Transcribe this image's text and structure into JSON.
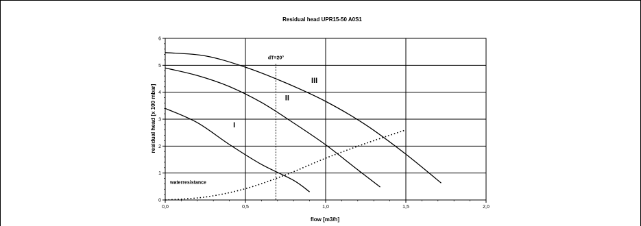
{
  "chart_data": {
    "type": "line",
    "title": "Residual head UPR15-50 A0S1",
    "xlabel": "flow [m3/h]",
    "ylabel": "residual head [x 100 mbar]",
    "xlim": [
      0,
      2
    ],
    "ylim": [
      0,
      6
    ],
    "x_ticks": [
      0,
      0.5,
      1.0,
      1.5,
      2.0
    ],
    "x_tick_labels": [
      "0,0",
      "0,5",
      "1,0",
      "1,5",
      "2,0"
    ],
    "y_ticks": [
      0,
      1,
      2,
      3,
      4,
      5,
      6
    ],
    "y_tick_labels": [
      "0",
      "1",
      "2",
      "3",
      "4",
      "5",
      "6"
    ],
    "grid": true,
    "series": [
      {
        "name": "I",
        "style": "solid",
        "x": [
          0,
          0.2,
          0.4,
          0.6,
          0.8,
          0.9
        ],
        "y": [
          3.4,
          2.87,
          2.06,
          1.32,
          0.73,
          0.3
        ]
      },
      {
        "name": "II",
        "style": "solid",
        "x": [
          0,
          0.2,
          0.4,
          0.6,
          0.8,
          1.0,
          1.2,
          1.34
        ],
        "y": [
          4.9,
          4.62,
          4.21,
          3.62,
          2.86,
          2.05,
          1.12,
          0.48
        ]
      },
      {
        "name": "III",
        "style": "solid",
        "x": [
          0,
          0.25,
          0.5,
          0.75,
          1.0,
          1.25,
          1.5,
          1.72
        ],
        "y": [
          5.47,
          5.35,
          4.93,
          4.35,
          3.66,
          2.79,
          1.7,
          0.63
        ]
      },
      {
        "name": "waterresistance",
        "style": "dotted",
        "x": [
          0,
          0.25,
          0.5,
          0.75,
          1.0,
          1.25,
          1.5
        ],
        "y": [
          0,
          0.11,
          0.42,
          0.93,
          1.55,
          2.1,
          2.6
        ]
      }
    ],
    "annotations": [
      {
        "text": "dT=20°",
        "x": 0.69,
        "style": "dotted-vertical-line"
      },
      {
        "text": "waterresistance",
        "x": 0.03,
        "y": 0.6
      },
      {
        "text": "I",
        "x": 0.43,
        "y": 2.7
      },
      {
        "text": "II",
        "x": 0.76,
        "y": 3.7
      },
      {
        "text": "III",
        "x": 0.93,
        "y": 4.35
      }
    ],
    "colors": {
      "lines": "#000000",
      "grid": "#000000",
      "background": "#ffffff"
    }
  }
}
